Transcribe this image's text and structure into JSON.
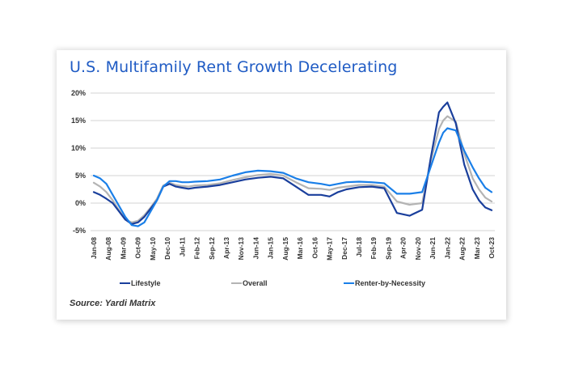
{
  "chart_data": {
    "type": "line",
    "title": "U.S. Multifamily Rent Growth Decelerating",
    "xlabel": "",
    "ylabel": "",
    "ylim": [
      -5,
      20
    ],
    "yticks": [
      "20%",
      "15%",
      "10%",
      "5%",
      "0%",
      "-5%"
    ],
    "ytick_values": [
      20,
      15,
      10,
      5,
      0,
      -5
    ],
    "grid": true,
    "legend_position": "bottom",
    "source": "Source: Yardi Matrix",
    "xtick_labels": [
      "Jan-08",
      "Aug-08",
      "Mar-09",
      "Oct-09",
      "May-10",
      "Dec-10",
      "Jul-11",
      "Feb-12",
      "Sep-12",
      "Apr-13",
      "Nov-13",
      "Jun-14",
      "Jan-15",
      "Aug-15",
      "Mar-16",
      "Oct-16",
      "May-17",
      "Dec-17",
      "Jul-18",
      "Feb-19",
      "Sep-19",
      "Apr-20",
      "Nov-20",
      "Jun-21",
      "Jan-22",
      "Aug-22",
      "Mar-23",
      "Oct-23"
    ],
    "x_index_note": "x values are month offsets from Jan-08 (Oct-23 = 189)",
    "series": [
      {
        "name": "Lifestyle",
        "color": "#1a3f9c",
        "x": [
          0,
          3,
          6,
          9,
          12,
          15,
          18,
          21,
          24,
          27,
          30,
          33,
          36,
          39,
          42,
          45,
          48,
          54,
          60,
          66,
          72,
          78,
          84,
          90,
          96,
          102,
          108,
          112,
          116,
          120,
          126,
          132,
          138,
          144,
          150,
          156,
          160,
          164,
          166,
          168,
          172,
          176,
          180,
          183,
          186,
          189
        ],
        "values": [
          2.0,
          1.5,
          0.8,
          0.0,
          -1.5,
          -3.0,
          -3.8,
          -3.5,
          -2.5,
          -1.0,
          0.5,
          3.0,
          3.5,
          3.0,
          2.8,
          2.6,
          2.8,
          3.0,
          3.3,
          3.8,
          4.3,
          4.6,
          4.8,
          4.5,
          3.0,
          1.5,
          1.5,
          1.2,
          2.0,
          2.5,
          2.9,
          3.0,
          2.7,
          -1.8,
          -2.3,
          -1.2,
          8.0,
          16.5,
          17.5,
          18.3,
          14.5,
          7.0,
          2.5,
          0.5,
          -0.8,
          -1.3
        ]
      },
      {
        "name": "Overall",
        "color": "#b4b4b4",
        "x": [
          0,
          3,
          6,
          9,
          12,
          15,
          18,
          21,
          24,
          27,
          30,
          33,
          36,
          39,
          42,
          45,
          48,
          54,
          60,
          66,
          72,
          78,
          84,
          90,
          96,
          102,
          108,
          112,
          116,
          120,
          126,
          132,
          138,
          144,
          150,
          156,
          160,
          164,
          166,
          168,
          172,
          176,
          180,
          183,
          186,
          189
        ],
        "values": [
          3.7,
          3.0,
          2.0,
          0.5,
          -1.3,
          -3.0,
          -3.5,
          -3.2,
          -2.2,
          -0.8,
          0.8,
          3.2,
          3.7,
          3.3,
          3.1,
          3.0,
          3.2,
          3.3,
          3.6,
          4.2,
          4.7,
          5.1,
          5.3,
          5.0,
          3.8,
          2.7,
          2.6,
          2.4,
          2.8,
          3.0,
          3.3,
          3.3,
          3.0,
          0.3,
          -0.3,
          0.0,
          7.5,
          13.5,
          15.0,
          15.8,
          14.8,
          9.0,
          4.5,
          2.5,
          1.0,
          0.3
        ]
      },
      {
        "name": "Renter-by-Necessity",
        "color": "#1a7fe8",
        "x": [
          0,
          3,
          6,
          9,
          12,
          15,
          18,
          21,
          24,
          27,
          30,
          33,
          36,
          39,
          42,
          45,
          48,
          54,
          60,
          66,
          72,
          78,
          84,
          90,
          96,
          102,
          108,
          112,
          116,
          120,
          126,
          132,
          138,
          144,
          150,
          156,
          160,
          164,
          166,
          168,
          172,
          176,
          180,
          183,
          186,
          189
        ],
        "values": [
          5.0,
          4.5,
          3.5,
          1.5,
          -0.5,
          -2.5,
          -4.0,
          -4.2,
          -3.5,
          -1.5,
          0.5,
          3.0,
          4.0,
          4.0,
          3.8,
          3.8,
          3.9,
          4.0,
          4.3,
          5.0,
          5.6,
          5.9,
          5.8,
          5.5,
          4.5,
          3.8,
          3.5,
          3.2,
          3.5,
          3.8,
          3.9,
          3.8,
          3.6,
          1.7,
          1.7,
          2.0,
          6.5,
          11.0,
          12.8,
          13.6,
          13.2,
          9.5,
          6.5,
          4.5,
          2.8,
          2.0
        ]
      }
    ]
  }
}
